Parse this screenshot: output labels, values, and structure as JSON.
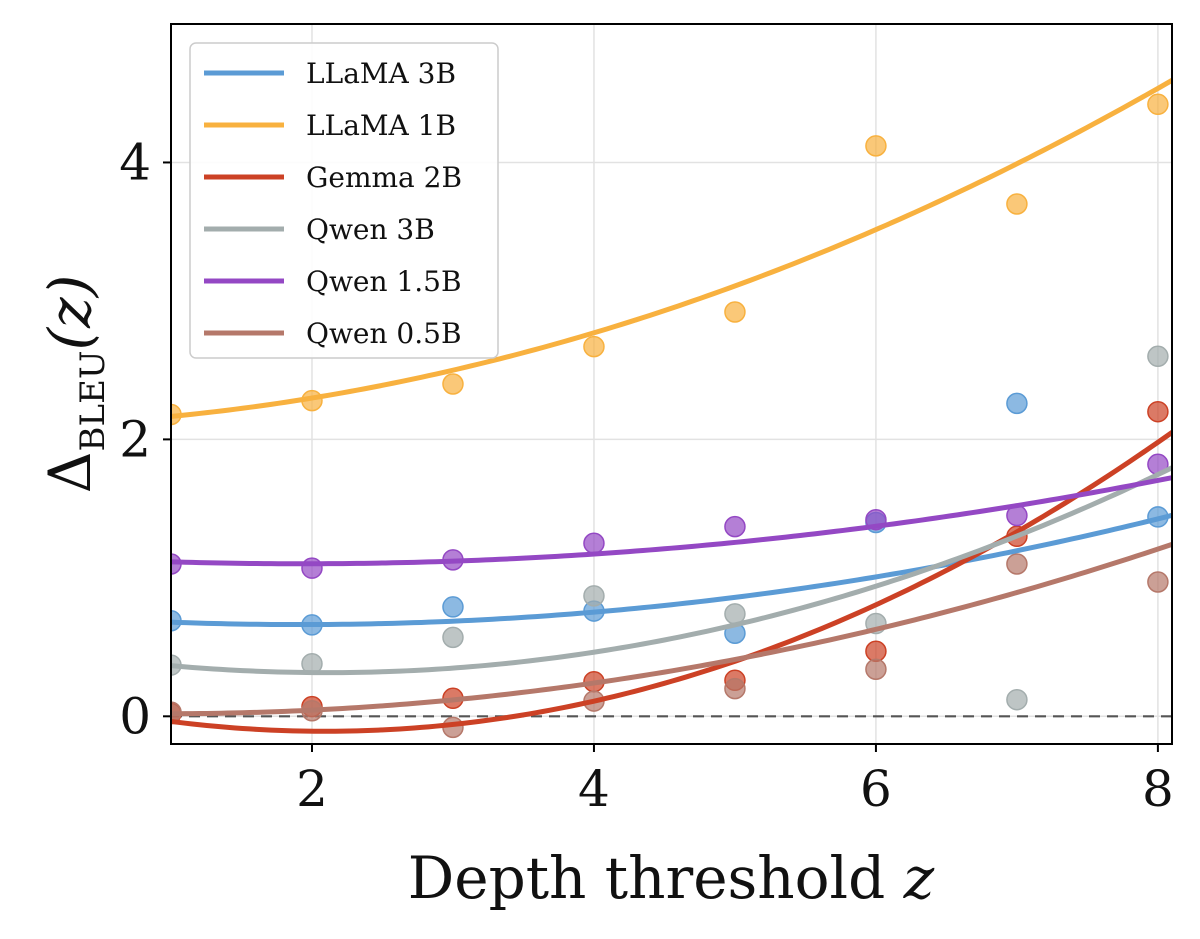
{
  "chart_data": {
    "type": "scatter",
    "xlabel_prefix": "Depth threshold ",
    "xlabel_var": "z",
    "ylabel_main": "Δ",
    "ylabel_sub": "BLEU",
    "ylabel_arg": "(z)",
    "xlim": [
      1,
      8.1
    ],
    "ylim": [
      -0.2,
      5.0
    ],
    "xticks": [
      2,
      4,
      6,
      8
    ],
    "yticks": [
      0,
      2,
      4
    ],
    "grid": true,
    "legend_position": "top-left",
    "reference_line": 0,
    "series": [
      {
        "name": "LLaMA 3B",
        "color": "#5b9bd5",
        "x": [
          1,
          2,
          3,
          4,
          5,
          6,
          7,
          8
        ],
        "points": [
          0.69,
          0.66,
          0.79,
          0.76,
          0.6,
          1.4,
          2.26,
          1.44
        ],
        "fit": [
          0.0206,
          -0.0788,
          0.738
        ]
      },
      {
        "name": "LLaMA 1B",
        "color": "#f8b13f",
        "x": [
          1,
          2,
          3,
          4,
          5,
          6,
          7,
          8
        ],
        "points": [
          2.18,
          2.28,
          2.4,
          2.67,
          2.92,
          4.12,
          3.7,
          4.42
        ],
        "fit": [
          0.0343,
          0.0297,
          2.102
        ]
      },
      {
        "name": "Gemma 2B",
        "color": "#cc4125",
        "x": [
          1,
          2,
          3,
          4,
          5,
          6,
          7,
          8
        ],
        "points": [
          0.02,
          0.07,
          0.13,
          0.25,
          0.26,
          0.47,
          1.3,
          2.2
        ],
        "fit": [
          0.0598,
          -0.2502,
          0.1535
        ]
      },
      {
        "name": "Qwen 3B",
        "color": "#a3adad",
        "x": [
          1,
          2,
          3,
          4,
          5,
          6,
          7,
          8
        ],
        "points": [
          0.37,
          0.38,
          0.57,
          0.87,
          0.74,
          0.67,
          0.12,
          2.6
        ],
        "fit": [
          0.0412,
          -0.1736,
          0.4982
        ]
      },
      {
        "name": "Qwen 1.5B",
        "color": "#9448c4",
        "x": [
          1,
          2,
          3,
          4,
          5,
          6,
          7,
          8
        ],
        "points": [
          1.1,
          1.07,
          1.13,
          1.25,
          1.37,
          1.42,
          1.45,
          1.82
        ],
        "fit": [
          0.0163,
          -0.0627,
          1.162
        ]
      },
      {
        "name": "Qwen 0.5B",
        "color": "#b5786a",
        "x": [
          1,
          2,
          3,
          4,
          5,
          6,
          7,
          8
        ],
        "points": [
          0.03,
          0.04,
          -0.08,
          0.11,
          0.2,
          0.34,
          1.1,
          0.97
        ],
        "fit": [
          0.024,
          -0.0461,
          0.0408
        ]
      }
    ]
  }
}
